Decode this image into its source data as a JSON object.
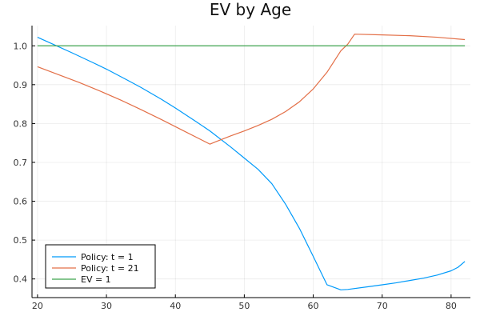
{
  "chart_data": {
    "type": "line",
    "title": "EV by Age",
    "xlabel": "",
    "ylabel": "",
    "xlim": [
      19.2,
      82.8
    ],
    "ylim": [
      0.352,
      1.052
    ],
    "xticks": [
      20,
      30,
      40,
      50,
      60,
      70,
      80
    ],
    "yticks": [
      0.4,
      0.5,
      0.6,
      0.7,
      0.8,
      0.9,
      1.0
    ],
    "ytick_labels": [
      "0.4",
      "0.5",
      "0.6",
      "0.7",
      "0.8",
      "0.9",
      "1.0"
    ],
    "grid": true,
    "legend_position": "bottom-left",
    "series": [
      {
        "name": "Policy: t = 1",
        "color": "#009AFA",
        "x": [
          20,
          22,
          25,
          28,
          30,
          33,
          35,
          38,
          40,
          43,
          45,
          48,
          50,
          52,
          54,
          56,
          58,
          60,
          62,
          64,
          65,
          68,
          70,
          72,
          74,
          76,
          78,
          80,
          81,
          82
        ],
        "y": [
          1.022,
          1.006,
          0.982,
          0.957,
          0.94,
          0.912,
          0.893,
          0.862,
          0.84,
          0.805,
          0.781,
          0.74,
          0.711,
          0.682,
          0.645,
          0.592,
          0.53,
          0.458,
          0.385,
          0.372,
          0.373,
          0.38,
          0.385,
          0.39,
          0.396,
          0.402,
          0.41,
          0.421,
          0.43,
          0.445
        ]
      },
      {
        "name": "Policy: t = 21",
        "color": "#E36F47",
        "x": [
          20,
          23,
          26,
          29,
          32,
          35,
          38,
          41,
          44,
          45,
          46,
          48,
          50,
          52,
          54,
          56,
          58,
          60,
          62,
          64,
          65,
          66,
          70,
          74,
          78,
          82
        ],
        "y": [
          0.946,
          0.926,
          0.906,
          0.884,
          0.861,
          0.836,
          0.81,
          0.783,
          0.756,
          0.747,
          0.754,
          0.768,
          0.781,
          0.795,
          0.811,
          0.831,
          0.856,
          0.889,
          0.932,
          0.987,
          1.004,
          1.03,
          1.028,
          1.026,
          1.022,
          1.016
        ]
      },
      {
        "name": "EV = 1",
        "color": "#3EA44E",
        "x": [
          20,
          82
        ],
        "y": [
          1.0,
          1.0
        ]
      }
    ]
  }
}
